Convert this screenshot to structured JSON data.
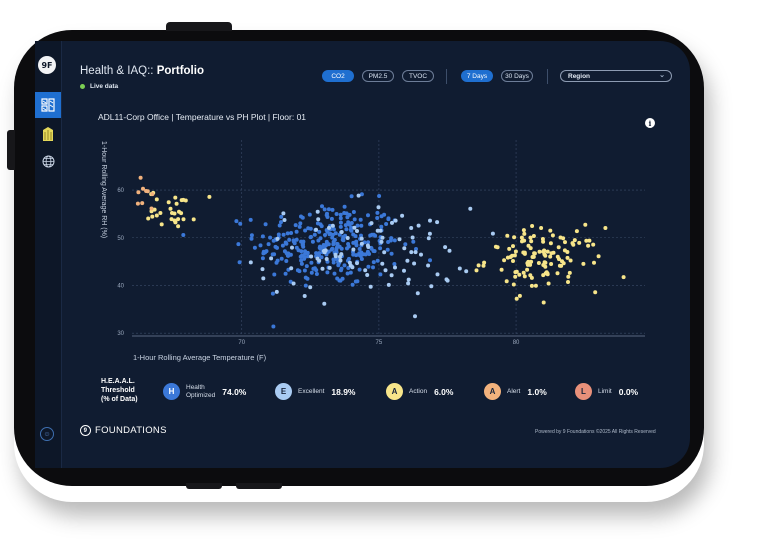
{
  "header": {
    "title_prefix": "Health & IAQ:: ",
    "title_bold": "Portfolio",
    "live_label": "Live data",
    "live_color": "#7bcf54"
  },
  "sidebar": {
    "logo": "9F",
    "items": [
      {
        "icon": "building-icon",
        "active": true
      },
      {
        "icon": "leaf-building-icon",
        "active": false
      },
      {
        "icon": "globe-icon",
        "active": false
      }
    ],
    "bottom_icon": "user-icon"
  },
  "filters": {
    "metrics": [
      {
        "label": "CO2",
        "active": true
      },
      {
        "label": "PM2.5",
        "active": false
      },
      {
        "label": "TVOC",
        "active": false
      }
    ],
    "ranges": [
      {
        "label": "7 Days",
        "active": true
      },
      {
        "label": "30 Days",
        "active": false
      }
    ],
    "region": {
      "label": "Region"
    }
  },
  "chart": {
    "info_icon": "i"
  },
  "chart_data": {
    "type": "scatter",
    "title": "ADL11-Corp Office | Temperature vs PH Plot | Floor: 01",
    "xlabel": "1-Hour Rolling Average Temperature (F)",
    "ylabel": "1-Hour Rolling Average RH (%)",
    "xlim": [
      66.0,
      84.7
    ],
    "ylim": [
      29.4,
      70.5
    ],
    "xticks": [
      70,
      75,
      80
    ],
    "yticks": [
      30,
      40,
      50,
      60
    ],
    "grid": true,
    "series": [
      {
        "name": "Health Optimized",
        "color": "#3b78d8",
        "cx": 73.2,
        "cy": 48.5,
        "sx": 2.4,
        "sy": 8.0,
        "count": 300
      },
      {
        "name": "Excellent",
        "color": "#a9cbf2",
        "cx": 74.5,
        "cy": 47.0,
        "sx": 3.6,
        "sy": 8.5,
        "count": 95
      },
      {
        "name": "Action",
        "color": "#f7e58a",
        "cx": 81.0,
        "cy": 45.5,
        "sx": 1.9,
        "sy": 6.0,
        "count": 120
      },
      {
        "name": "Action",
        "color": "#f7e58a",
        "cx": 67.5,
        "cy": 56.0,
        "sx": 0.8,
        "sy": 3.5,
        "count": 30
      },
      {
        "name": "Alert",
        "color": "#f2b27d",
        "cx": 66.4,
        "cy": 58.0,
        "sx": 0.3,
        "sy": 4.0,
        "count": 9
      }
    ]
  },
  "legend": {
    "heading": [
      "H.E.A.A.L.",
      "Threshold",
      "(% of Data)"
    ],
    "items": [
      {
        "letter": "H",
        "label": "Health Optimized",
        "label_lines": [
          "Health",
          "Optimized"
        ],
        "pct": "74.0%",
        "color": "#3b78d8",
        "text_color": "#ffffff"
      },
      {
        "letter": "E",
        "label": "Excellent",
        "label_lines": [
          "Excellent"
        ],
        "pct": "18.9%",
        "color": "#a9cbf2",
        "text_color": "#17233a"
      },
      {
        "letter": "A",
        "label": "Action",
        "label_lines": [
          "Action"
        ],
        "pct": "6.0%",
        "color": "#f7e58a",
        "text_color": "#17233a"
      },
      {
        "letter": "A",
        "label": "Alert",
        "label_lines": [
          "Alert"
        ],
        "pct": "1.0%",
        "color": "#f2b27d",
        "text_color": "#17233a"
      },
      {
        "letter": "L",
        "label": "Limit",
        "label_lines": [
          "Limit"
        ],
        "pct": "0.0%",
        "color": "#e8907a",
        "text_color": "#17233a"
      }
    ]
  },
  "footer": {
    "brand": "FOUNDATIONS",
    "copyright": "Powered by 9 Foundations ©2025 All Rights Reserved"
  }
}
